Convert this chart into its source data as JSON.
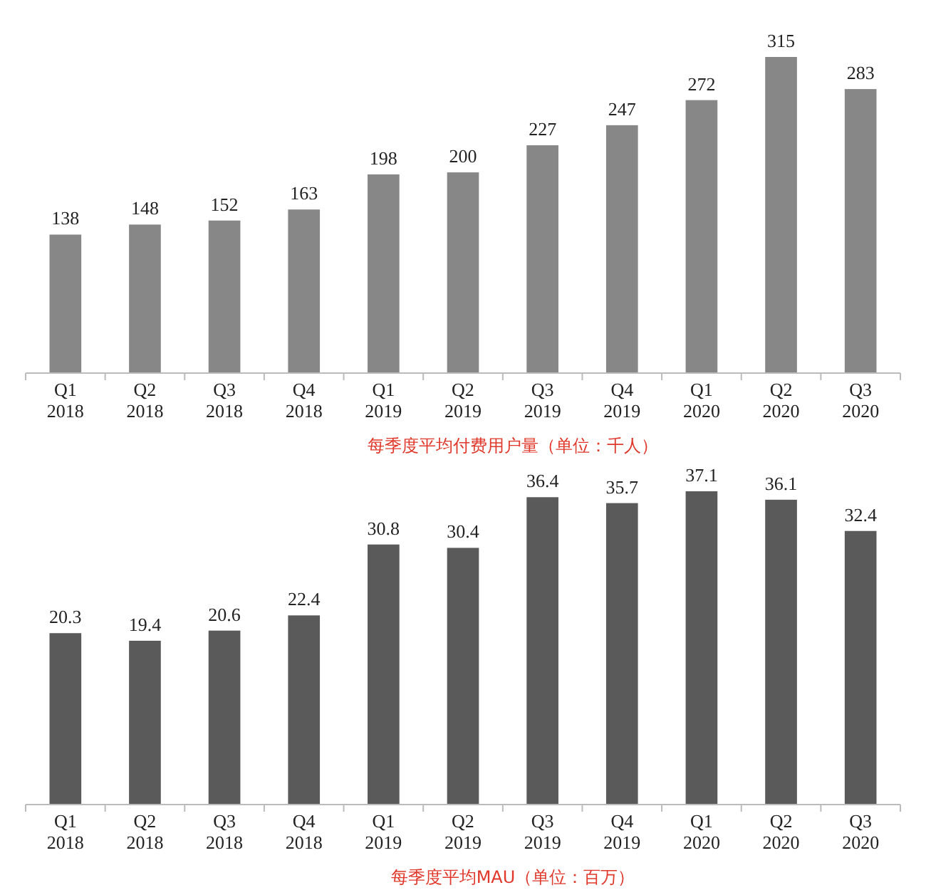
{
  "chart_data": [
    {
      "type": "bar",
      "xlabel": "每季度平均付费用户量（单位：千人）",
      "categories": [
        "Q1\n2018",
        "Q2\n2018",
        "Q3\n2018",
        "Q4\n2018",
        "Q1\n2019",
        "Q2\n2019",
        "Q3\n2019",
        "Q4\n2019",
        "Q1\n2020",
        "Q2\n2020",
        "Q3\n2020"
      ],
      "values": [
        138,
        148,
        152,
        163,
        198,
        200,
        227,
        247,
        272,
        315,
        283
      ],
      "color": "#878787",
      "data_labels": true
    },
    {
      "type": "bar",
      "xlabel": "每季度平均MAU（单位：百万）",
      "categories": [
        "Q1\n2018",
        "Q2\n2018",
        "Q3\n2018",
        "Q4\n2018",
        "Q1\n2019",
        "Q2\n2019",
        "Q3\n2019",
        "Q4\n2019",
        "Q1\n2020",
        "Q2\n2020",
        "Q3\n2020"
      ],
      "values": [
        20.3,
        19.4,
        20.6,
        22.4,
        30.8,
        30.4,
        36.4,
        35.7,
        37.1,
        36.1,
        32.4
      ],
      "color": "#5a5a5a",
      "data_labels": true
    }
  ]
}
